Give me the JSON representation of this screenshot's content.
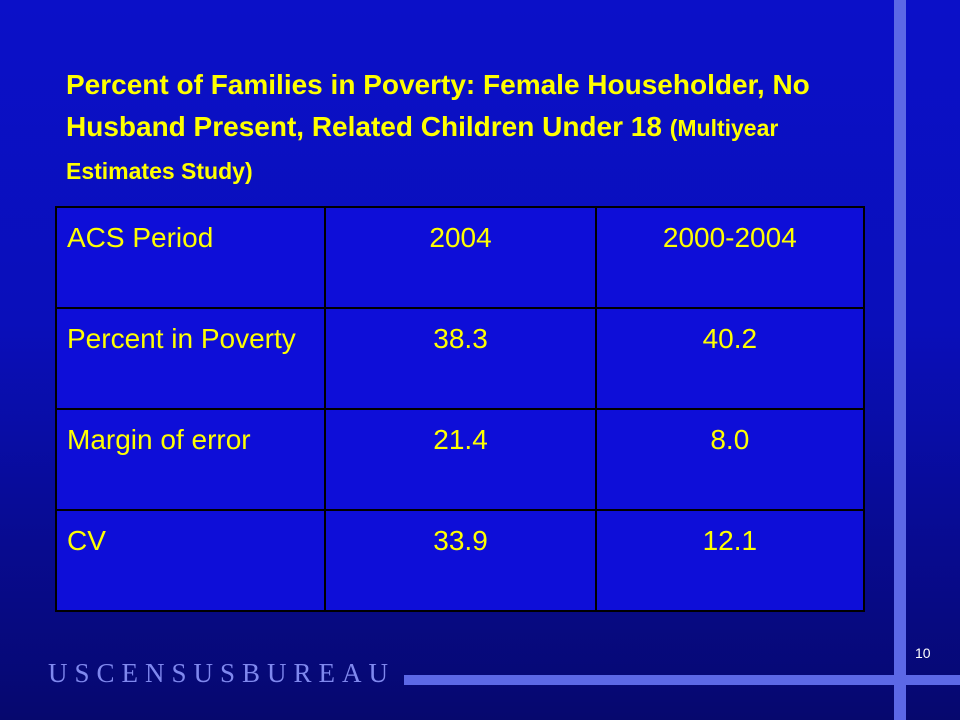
{
  "slide": {
    "title_main": "Percent of Families in Poverty:  Female Householder, No Husband Present, Related Children Under 18",
    "title_sub": "(Multiyear Estimates Study)",
    "page_number": "10",
    "logo_text": "USCENSUSBUREAU"
  },
  "table": {
    "rows": [
      [
        "ACS Period",
        "2004",
        "2000-2004"
      ],
      [
        "Percent in Poverty",
        "38.3",
        "40.2"
      ],
      [
        "Margin of error",
        "21.4",
        "8.0"
      ],
      [
        "CV",
        "33.9",
        "12.1"
      ]
    ]
  },
  "colors": {
    "background": "#0a0fc0",
    "text": "#ffff00",
    "accent_lines": "#5c68e6"
  }
}
